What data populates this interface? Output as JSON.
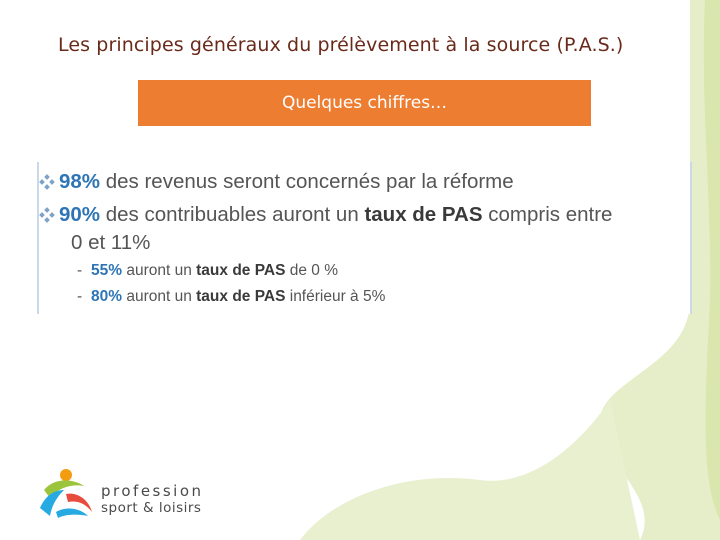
{
  "slide": {
    "title": "Les principes généraux du prélèvement à la source (P.A.S.)",
    "banner": "Quelques chiffres…"
  },
  "bullets": [
    {
      "pct": "98%",
      "text": " des revenus seront concernés par la réforme"
    },
    {
      "pct": "90%",
      "text_before": " des contribuables auront un ",
      "strong": "taux de PAS",
      "text_after": " compris entre",
      "line2": "0 et 11%"
    }
  ],
  "sub_bullets": [
    {
      "dash": "-",
      "pct": "55%",
      "text_before": " auront un ",
      "strong": "taux de PAS",
      "text_after": " de 0 %"
    },
    {
      "dash": "-",
      "pct": "80%",
      "text_before": " auront un ",
      "strong": "taux de PAS",
      "text_after": " inférieur à 5%"
    }
  ],
  "logo": {
    "line1": "profession",
    "line2": "sport & loisirs"
  },
  "colors": {
    "accent": "#ed7d31",
    "title": "#6a2a1a",
    "percent": "#2e75b6",
    "decor_green": "#e3ecc3"
  },
  "icons": {
    "bullet": "diamond-bullet-icon",
    "logo": "profession-sport-loisirs-logo"
  }
}
